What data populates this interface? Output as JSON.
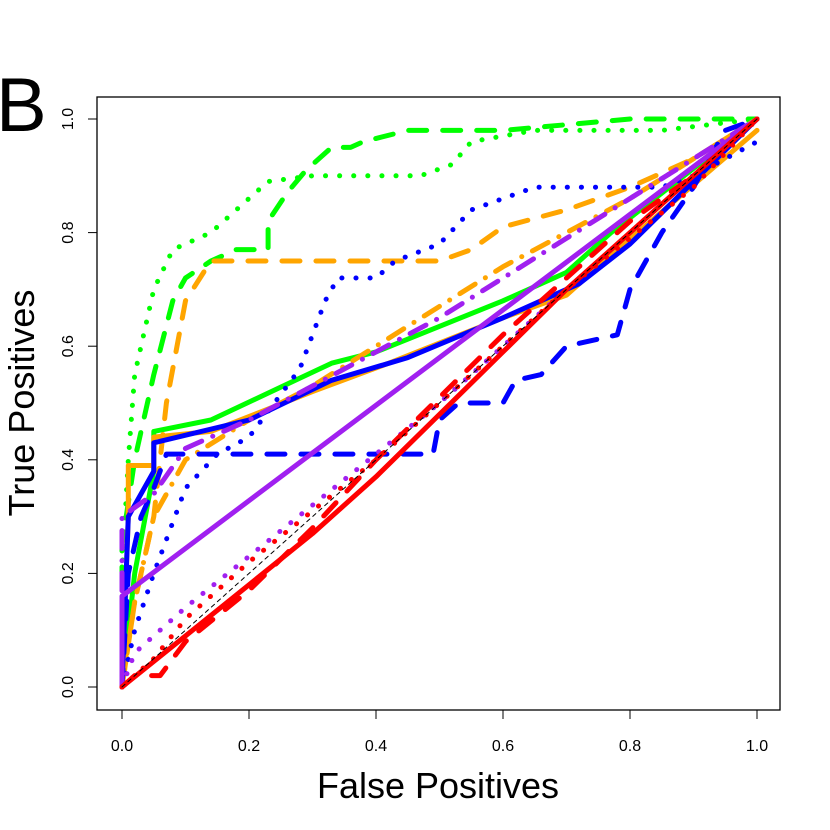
{
  "panel_label": "B",
  "chart_data": {
    "type": "line",
    "title": "",
    "panel_label": "B",
    "xlabel": "False Positives",
    "ylabel": "True Positives",
    "xlim": [
      0,
      1
    ],
    "ylim": [
      0,
      1
    ],
    "grid": false,
    "legend": null,
    "x_ticks": [
      "0.0",
      "0.2",
      "0.4",
      "0.6",
      "0.8",
      "1.0"
    ],
    "y_ticks": [
      "0.0",
      "0.2",
      "0.4",
      "0.6",
      "0.8",
      "1.0"
    ],
    "series": [
      {
        "name": "green dotted",
        "color": "#00ff00",
        "style": "dotted",
        "x": [
          0,
          0.0,
          0.01,
          0.02,
          0.05,
          0.08,
          0.14,
          0.2,
          0.23,
          0.3,
          0.4,
          0.47,
          0.52,
          0.55,
          0.6,
          0.65,
          0.7,
          0.85,
          1.0
        ],
        "y": [
          0,
          0.2,
          0.4,
          0.55,
          0.7,
          0.77,
          0.8,
          0.86,
          0.89,
          0.9,
          0.9,
          0.9,
          0.92,
          0.96,
          0.97,
          0.98,
          0.98,
          0.98,
          1.0
        ]
      },
      {
        "name": "green dashed",
        "color": "#00ff00",
        "style": "dashed",
        "x": [
          0,
          0.0,
          0.02,
          0.05,
          0.08,
          0.1,
          0.14,
          0.18,
          0.23,
          0.23,
          0.26,
          0.29,
          0.31,
          0.33,
          0.36,
          0.38,
          0.45,
          0.6,
          0.8,
          0.9,
          1.0
        ],
        "y": [
          0,
          0.25,
          0.4,
          0.55,
          0.68,
          0.72,
          0.75,
          0.77,
          0.77,
          0.82,
          0.87,
          0.91,
          0.93,
          0.95,
          0.95,
          0.96,
          0.98,
          0.98,
          1.0,
          1.0,
          1.0
        ]
      },
      {
        "name": "green solid",
        "color": "#00ff00",
        "style": "solid",
        "x": [
          0,
          0.02,
          0.05,
          0.05,
          0.14,
          0.33,
          0.4,
          0.6,
          0.7,
          0.77,
          1.0
        ],
        "y": [
          0,
          0.2,
          0.38,
          0.45,
          0.47,
          0.57,
          0.59,
          0.68,
          0.73,
          0.8,
          1.0
        ]
      },
      {
        "name": "orange dashed",
        "color": "#ffa500",
        "style": "dashed",
        "x": [
          0,
          0.02,
          0.05,
          0.07,
          0.1,
          0.14,
          0.3,
          0.5,
          0.55,
          0.6,
          0.7,
          0.8,
          0.9,
          1.0
        ],
        "y": [
          0,
          0.15,
          0.3,
          0.5,
          0.68,
          0.75,
          0.75,
          0.75,
          0.77,
          0.81,
          0.84,
          0.88,
          0.93,
          1.0
        ]
      },
      {
        "name": "orange dotdash",
        "color": "#ffa500",
        "style": "dotdash",
        "x": [
          0,
          0.02,
          0.05,
          0.1,
          0.2,
          0.3,
          0.4,
          0.5,
          0.6,
          0.7,
          0.8,
          0.9,
          1.0
        ],
        "y": [
          0,
          0.15,
          0.3,
          0.4,
          0.47,
          0.53,
          0.6,
          0.67,
          0.74,
          0.8,
          0.86,
          0.93,
          1.0
        ]
      },
      {
        "name": "orange solid",
        "color": "#ffa500",
        "style": "solid",
        "x": [
          0,
          0.01,
          0.01,
          0.05,
          0.05,
          0.14,
          0.3,
          0.42,
          0.6,
          0.7,
          0.77,
          1.0
        ],
        "y": [
          0,
          0.3,
          0.39,
          0.39,
          0.44,
          0.45,
          0.52,
          0.57,
          0.65,
          0.69,
          0.76,
          0.98
        ]
      },
      {
        "name": "blue dotted",
        "color": "#0000ff",
        "style": "dotted",
        "x": [
          0,
          0.02,
          0.05,
          0.1,
          0.15,
          0.2,
          0.24,
          0.28,
          0.3,
          0.32,
          0.34,
          0.4,
          0.43,
          0.5,
          0.55,
          0.65,
          0.75,
          0.85,
          0.9,
          1.0
        ],
        "y": [
          0,
          0.1,
          0.2,
          0.35,
          0.41,
          0.44,
          0.5,
          0.56,
          0.62,
          0.68,
          0.72,
          0.72,
          0.75,
          0.78,
          0.84,
          0.88,
          0.88,
          0.88,
          0.9,
          0.96
        ]
      },
      {
        "name": "blue dashed",
        "color": "#0000ff",
        "style": "dashed",
        "x": [
          0,
          0.01,
          0.03,
          0.05,
          0.07,
          0.1,
          0.25,
          0.4,
          0.49,
          0.5,
          0.53,
          0.6,
          0.62,
          0.66,
          0.7,
          0.78,
          0.8,
          0.85,
          0.9,
          0.95,
          1.0
        ],
        "y": [
          0,
          0.2,
          0.3,
          0.35,
          0.41,
          0.41,
          0.41,
          0.41,
          0.41,
          0.47,
          0.5,
          0.5,
          0.54,
          0.55,
          0.6,
          0.62,
          0.7,
          0.8,
          0.88,
          0.98,
          1.0
        ]
      },
      {
        "name": "blue solid",
        "color": "#0000ff",
        "style": "solid",
        "x": [
          0,
          0.01,
          0.05,
          0.05,
          0.2,
          0.33,
          0.45,
          0.6,
          0.72,
          0.8,
          1.0
        ],
        "y": [
          0,
          0.3,
          0.38,
          0.43,
          0.47,
          0.54,
          0.58,
          0.65,
          0.71,
          0.78,
          1.0
        ]
      },
      {
        "name": "purple solid",
        "color": "#a020f0",
        "style": "solid",
        "x": [
          0,
          0.0,
          1.0
        ],
        "y": [
          0,
          0.16,
          1.0
        ]
      },
      {
        "name": "purple dotdash",
        "color": "#a020f0",
        "style": "dotdash",
        "x": [
          0,
          0.0,
          0.05,
          0.1,
          0.2,
          0.3,
          0.4,
          0.5,
          0.6,
          0.7,
          0.8,
          0.9,
          1.0
        ],
        "y": [
          0,
          0.3,
          0.34,
          0.42,
          0.47,
          0.53,
          0.59,
          0.65,
          0.72,
          0.79,
          0.86,
          0.93,
          1.0
        ]
      },
      {
        "name": "purple dotted",
        "color": "#a020f0",
        "style": "dotted",
        "x": [
          0,
          0.02,
          0.1,
          0.2,
          0.3,
          0.4,
          0.5,
          0.6,
          0.7,
          0.8,
          0.9,
          1.0
        ],
        "y": [
          0,
          0.06,
          0.14,
          0.23,
          0.32,
          0.41,
          0.5,
          0.6,
          0.7,
          0.8,
          0.9,
          1.0
        ]
      },
      {
        "name": "red solid",
        "color": "#ff0000",
        "style": "solid",
        "x": [
          0,
          0.1,
          0.2,
          0.3,
          0.4,
          0.5,
          0.6,
          0.7,
          0.8,
          0.9,
          1.0
        ],
        "y": [
          0,
          0.09,
          0.18,
          0.27,
          0.37,
          0.48,
          0.59,
          0.7,
          0.8,
          0.9,
          1.0
        ]
      },
      {
        "name": "red dashed",
        "color": "#ff0000",
        "style": "dashed",
        "x": [
          0,
          0.02,
          0.06,
          0.1,
          0.2,
          0.3,
          0.4,
          0.5,
          0.6,
          0.7,
          0.8,
          0.9,
          1.0
        ],
        "y": [
          0,
          0.02,
          0.02,
          0.08,
          0.17,
          0.28,
          0.4,
          0.51,
          0.62,
          0.72,
          0.82,
          0.9,
          1.0
        ]
      },
      {
        "name": "red dotted",
        "color": "#ff0000",
        "style": "dotted",
        "x": [
          0,
          0.05,
          0.1,
          0.2,
          0.3,
          0.4,
          0.5,
          0.6,
          0.7,
          0.8,
          0.9,
          1.0
        ],
        "y": [
          0,
          0.05,
          0.12,
          0.22,
          0.31,
          0.4,
          0.5,
          0.6,
          0.7,
          0.79,
          0.88,
          1.0
        ]
      },
      {
        "name": "random baseline",
        "color": "#000000",
        "style": "thin-dashed",
        "x": [
          0,
          1
        ],
        "y": [
          0,
          1
        ]
      }
    ]
  }
}
